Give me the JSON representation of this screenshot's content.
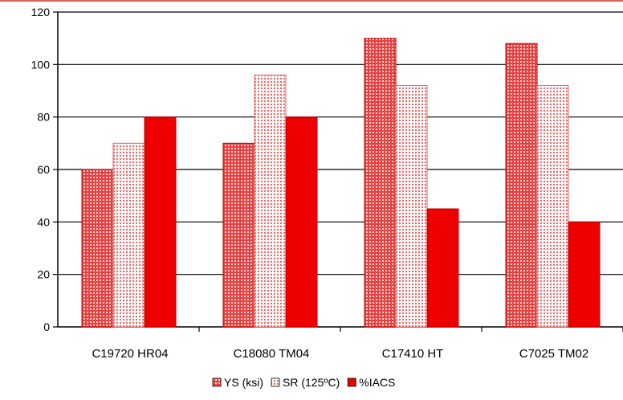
{
  "chart_data": {
    "type": "bar",
    "categories": [
      "C19720 HR04",
      "C18080 TM04",
      "C17410 HT",
      "C7025 TM02"
    ],
    "series": [
      {
        "name": "YS (ksi)",
        "values": [
          60,
          70,
          110,
          108
        ],
        "color": "#e8403f",
        "pattern": "dots-on-red"
      },
      {
        "name": "SR (125ºC)",
        "values": [
          70,
          96,
          92,
          92
        ],
        "color": "#f08080",
        "pattern": "dots-on-pink"
      },
      {
        "name": "%IACS",
        "values": [
          80,
          80,
          45,
          40
        ],
        "color": "#ee0000",
        "pattern": "solid"
      }
    ],
    "yticks": [
      "0",
      "20",
      "40",
      "60",
      "80",
      "100",
      "120"
    ],
    "ylim": [
      0,
      120
    ],
    "grid": true,
    "legend_position": "bottom",
    "title": "",
    "xlabel": "",
    "ylabel": "",
    "border_color": "#e06060"
  }
}
